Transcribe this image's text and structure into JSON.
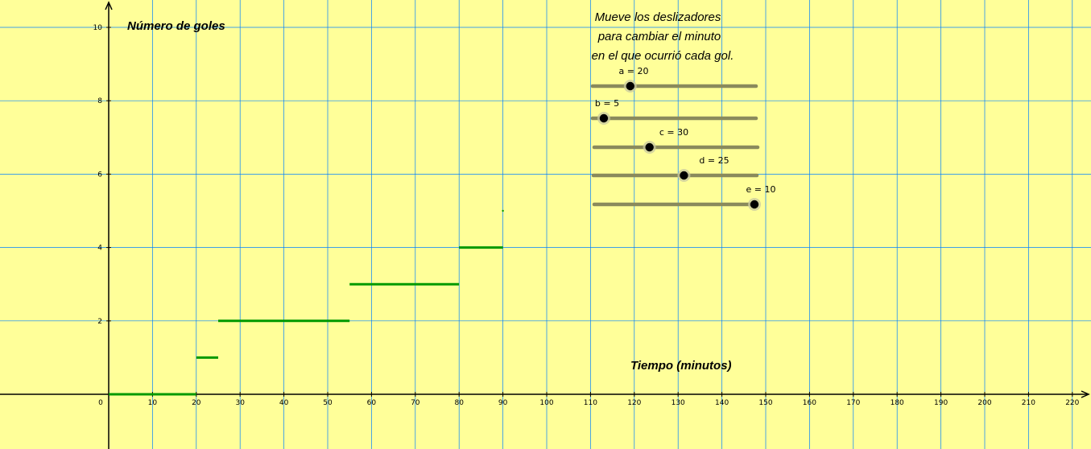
{
  "chart_data": {
    "type": "line",
    "ylabel": "Número de goles",
    "xlabel": "Tiempo (minutos)",
    "xlim": [
      0,
      225
    ],
    "ylim": [
      0,
      10
    ],
    "grid": true,
    "x_ticks": [
      0,
      10,
      20,
      30,
      40,
      50,
      60,
      70,
      80,
      90,
      100,
      110,
      120,
      130,
      140,
      150,
      160,
      170,
      180,
      190,
      200,
      210,
      220
    ],
    "y_ticks": [
      2,
      4,
      6,
      8,
      10
    ],
    "steps": [
      {
        "x0": 0,
        "x1": 20,
        "y": 0
      },
      {
        "x0": 20,
        "x1": 25,
        "y": 1
      },
      {
        "x0": 25,
        "x1": 55,
        "y": 2
      },
      {
        "x0": 55,
        "x1": 80,
        "y": 3
      },
      {
        "x0": 80,
        "x1": 90,
        "y": 4
      },
      {
        "x0": 90,
        "x1": 90,
        "y": 5
      }
    ],
    "line_color": "#009900",
    "grid_color": "#0080ff"
  },
  "instructions": [
    "Mueve los deslizadores",
    "para cambiar el minuto",
    "en el que ocurrió cada gol."
  ],
  "sliders": [
    {
      "name": "a",
      "label": "a = 20",
      "value": 20,
      "min": 0,
      "max": 90
    },
    {
      "name": "b",
      "label": "b = 5",
      "value": 5,
      "min": 0,
      "max": 90
    },
    {
      "name": "c",
      "label": "c = 30",
      "value": 30,
      "min": 0,
      "max": 90
    },
    {
      "name": "d",
      "label": "d = 25",
      "value": 25,
      "min": 0,
      "max": 45
    },
    {
      "name": "e",
      "label": "e = 10",
      "value": 10,
      "min": 0,
      "max": 10
    }
  ]
}
